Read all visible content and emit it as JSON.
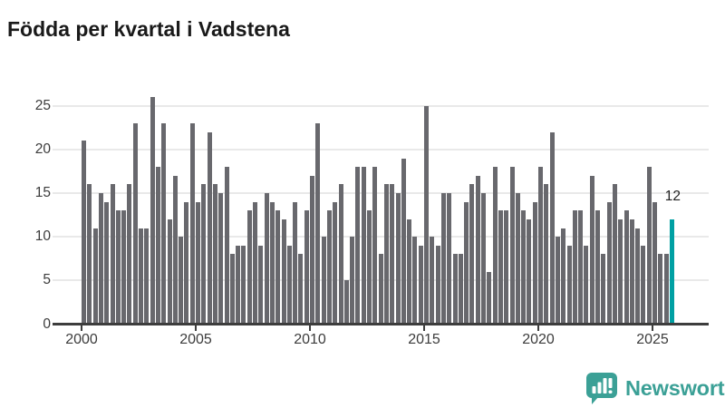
{
  "title": "Födda per kvartal i Vadstena",
  "chart_data": {
    "type": "bar",
    "title": "Födda per kvartal i Vadstena",
    "x_start": "2000-Q1",
    "frequency": "quarterly",
    "series": [
      {
        "name": "Födda per kvartal",
        "values": [
          21,
          16,
          11,
          15,
          14,
          16,
          13,
          13,
          16,
          23,
          11,
          11,
          26,
          18,
          23,
          12,
          17,
          10,
          14,
          23,
          14,
          16,
          22,
          16,
          15,
          18,
          8,
          9,
          9,
          13,
          14,
          9,
          15,
          14,
          13,
          12,
          9,
          14,
          8,
          13,
          17,
          23,
          10,
          13,
          14,
          16,
          5,
          10,
          18,
          18,
          13,
          18,
          8,
          16,
          16,
          15,
          19,
          12,
          10,
          9,
          25,
          10,
          9,
          15,
          15,
          8,
          8,
          14,
          16,
          17,
          15,
          6,
          18,
          13,
          13,
          18,
          15,
          13,
          12,
          14,
          18,
          16,
          22,
          10,
          11,
          9,
          13,
          13,
          9,
          17,
          13,
          8,
          14,
          16,
          12,
          13,
          12,
          11,
          9,
          18,
          14,
          8,
          8,
          12
        ]
      }
    ],
    "highlight": {
      "index": 103,
      "label": "12",
      "color": "#00a0a3"
    },
    "bar_color": "#68686d",
    "x_ticks": [
      2000,
      2005,
      2010,
      2015,
      2020,
      2025
    ],
    "y_ticks": [
      0,
      5,
      10,
      15,
      20,
      25
    ],
    "ylim": [
      0,
      26
    ],
    "grid": "horizontal",
    "legend": "none"
  },
  "footer": {
    "brand": "Newsworthy",
    "brand_color": "#3ba096",
    "logo_icon": "bar-chart-speech-bubble-icon"
  }
}
